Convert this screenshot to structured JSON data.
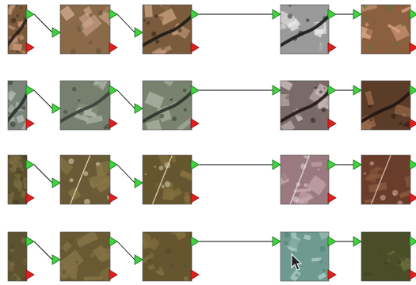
{
  "diagram": {
    "rows": [
      {
        "name": "pipeline-row-1",
        "nodes": [
          {
            "colors": [
              "#7a5a3a",
              "#c79878",
              "#2a2018"
            ],
            "river": true
          },
          {
            "colors": [
              "#8a6a48",
              "#d0a890",
              "#5a4a30"
            ],
            "river": false
          },
          {
            "colors": [
              "#7a5c3c",
              "#c8a080",
              "#1e1a14"
            ],
            "river": true
          },
          {
            "colors": [
              "#9a9a9a",
              "#e8e8e8",
              "#1c1c1c"
            ],
            "river": true
          },
          {
            "colors": [
              "#8a6040",
              "#d8a080",
              "#5a7040"
            ],
            "river": false
          }
        ]
      },
      {
        "name": "pipeline-row-2",
        "nodes": [
          {
            "colors": [
              "#7a8478",
              "#b0b8b0",
              "#2a302a"
            ],
            "river": true
          },
          {
            "colors": [
              "#76806e",
              "#aab4a4",
              "#3a4038"
            ],
            "river": true
          },
          {
            "colors": [
              "#78826e",
              "#a8b2a0",
              "#2c3228"
            ],
            "river": true
          },
          {
            "colors": [
              "#7a6a68",
              "#c8b8b8",
              "#201818"
            ],
            "river": true
          },
          {
            "colors": [
              "#5a3c28",
              "#9a6a4a",
              "#201410"
            ],
            "river": true
          }
        ]
      },
      {
        "name": "pipeline-row-3",
        "nodes": [
          {
            "colors": [
              "#5c5230",
              "#7a6c40",
              "#3a3420"
            ],
            "river": false
          },
          {
            "colors": [
              "#6a5a36",
              "#8a7848",
              "#e8e0c0"
            ],
            "river": false
          },
          {
            "colors": [
              "#66562f",
              "#86733f",
              "#e0d8b8"
            ],
            "river": false
          },
          {
            "colors": [
              "#9a7a80",
              "#c8aab0",
              "#e8e0e8"
            ],
            "river": false
          },
          {
            "colors": [
              "#6a3c2a",
              "#8a5a40",
              "#d8c0b0"
            ],
            "river": false
          }
        ]
      },
      {
        "name": "pipeline-row-4",
        "nodes": [
          {
            "colors": [
              "#5e5330",
              "#7a6c42",
              "#4a4228"
            ],
            "river": false
          },
          {
            "colors": [
              "#6a5a34",
              "#847246",
              "#5a4e2c"
            ],
            "river": false
          },
          {
            "colors": [
              "#665630",
              "#82703f",
              "#52462a"
            ],
            "river": false
          },
          {
            "colors": [
              "#6e9a90",
              "#a8c8c0",
              "#4e7a70"
            ],
            "river": false
          },
          {
            "colors": [
              "#4a4e28",
              "#6a6e3c",
              "#3a3e20"
            ],
            "river": false
          }
        ]
      }
    ],
    "colors": {
      "output_port": "#3fd33f",
      "input_port": "#e02020",
      "link": "#000000",
      "background": "#ffffff"
    },
    "cursor": {
      "icon": "arrow-cursor-icon",
      "row": 4,
      "node": 4
    }
  }
}
